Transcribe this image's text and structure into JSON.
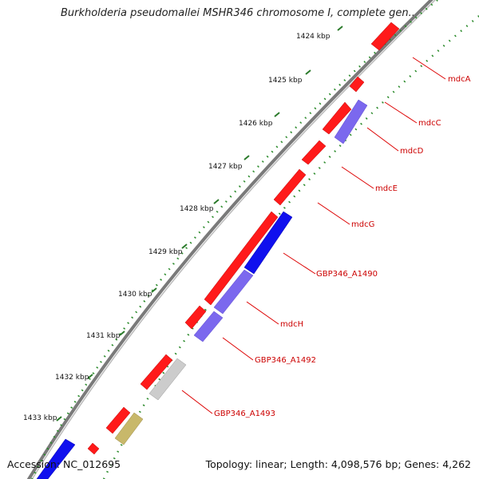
{
  "title": "Burkholderia pseudomallei MSHR346 chromosome I, complete gen...",
  "footer": {
    "accession": "Accession: NC_012695",
    "summary": "Topology: linear; Length: 4,098,576 bp; Genes: 4,262"
  },
  "scale": {
    "labels": [
      "1424 kbp",
      "1425 kbp",
      "1426 kbp",
      "1427 kbp",
      "1428 kbp",
      "1429 kbp",
      "1430 kbp",
      "1431 kbp",
      "1432 kbp",
      "1433 kbp"
    ]
  },
  "gene_labels": [
    "mdcA",
    "mdcC",
    "mdcD",
    "mdcE",
    "mdcG",
    "GBP346_A1490",
    "mdcH",
    "GBP346_A1492",
    "GBP346_A1493"
  ],
  "colors": {
    "gene_red": "#ff1a1a",
    "gene_blue": "#1010ee",
    "gene_violet": "#7b68ee",
    "gene_grey": "#cccccc",
    "gene_khaki": "#c8b86a",
    "label_red": "#cc0000",
    "backbone": "#888888",
    "dots_green": "#228b22"
  }
}
